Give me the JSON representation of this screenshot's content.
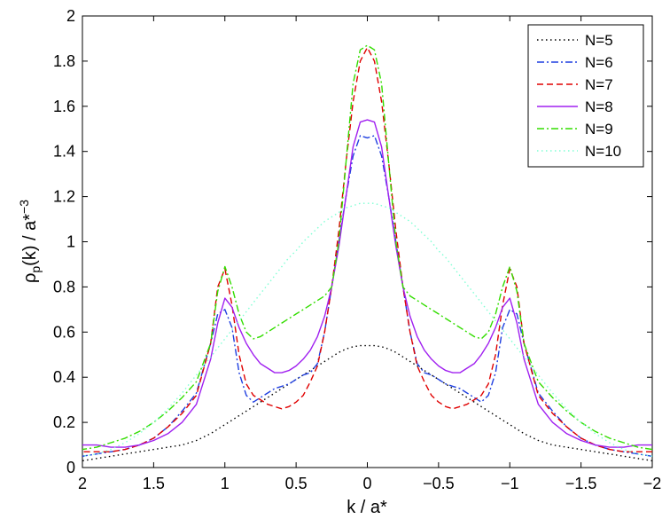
{
  "chart_data": {
    "type": "line",
    "xlabel": "k / a*",
    "ylabel": "ρ",
    "ylabel_sub": "p",
    "ylabel_rest": "(k) / a*",
    "ylabel_sup": "−3",
    "xlim": [
      2,
      -2
    ],
    "ylim": [
      0,
      2
    ],
    "xticks": [
      "2",
      "1.5",
      "1",
      "0.5",
      "0",
      "−0.5",
      "−1",
      "−1.5",
      "−2"
    ],
    "xtick_values": [
      2,
      1.5,
      1,
      0.5,
      0,
      -0.5,
      -1,
      -1.5,
      -2
    ],
    "yticks": [
      "0",
      "0.2",
      "0.4",
      "0.6",
      "0.8",
      "1",
      "1.2",
      "1.4",
      "1.6",
      "1.8",
      "2"
    ],
    "ytick_values": [
      0,
      0.2,
      0.4,
      0.6,
      0.8,
      1,
      1.2,
      1.4,
      1.6,
      1.8,
      2
    ],
    "grid": false,
    "legend_position": "top-right",
    "x": [
      -2,
      -1.9,
      -1.8,
      -1.7,
      -1.6,
      -1.5,
      -1.4,
      -1.3,
      -1.2,
      -1.1,
      -1.05,
      -1,
      -0.95,
      -0.9,
      -0.85,
      -0.8,
      -0.75,
      -0.7,
      -0.65,
      -0.6,
      -0.55,
      -0.5,
      -0.45,
      -0.4,
      -0.35,
      -0.3,
      -0.25,
      -0.2,
      -0.15,
      -0.1,
      -0.05,
      0,
      0.05,
      0.1,
      0.15,
      0.2,
      0.25,
      0.3,
      0.35,
      0.4,
      0.45,
      0.5,
      0.55,
      0.6,
      0.65,
      0.7,
      0.75,
      0.8,
      0.85,
      0.9,
      0.95,
      1,
      1.05,
      1.1,
      1.2,
      1.3,
      1.4,
      1.5,
      1.6,
      1.7,
      1.8,
      1.9,
      2
    ],
    "series": [
      {
        "name": "N=5",
        "color": "#000000",
        "dash": "1.5 3.5",
        "values": [
          0.03,
          0.04,
          0.05,
          0.06,
          0.07,
          0.08,
          0.09,
          0.1,
          0.12,
          0.15,
          0.17,
          0.19,
          0.21,
          0.23,
          0.25,
          0.27,
          0.29,
          0.31,
          0.33,
          0.35,
          0.37,
          0.39,
          0.41,
          0.43,
          0.45,
          0.47,
          0.49,
          0.51,
          0.525,
          0.535,
          0.54,
          0.54,
          0.54,
          0.535,
          0.525,
          0.51,
          0.49,
          0.47,
          0.45,
          0.43,
          0.41,
          0.39,
          0.37,
          0.35,
          0.33,
          0.31,
          0.29,
          0.27,
          0.25,
          0.23,
          0.21,
          0.19,
          0.17,
          0.15,
          0.12,
          0.1,
          0.09,
          0.08,
          0.07,
          0.06,
          0.05,
          0.04,
          0.03
        ]
      },
      {
        "name": "N=6",
        "color": "#1f3fe0",
        "dash": "8 3 2 3",
        "values": [
          0.05,
          0.06,
          0.07,
          0.08,
          0.1,
          0.13,
          0.18,
          0.25,
          0.33,
          0.55,
          0.68,
          0.7,
          0.62,
          0.42,
          0.32,
          0.29,
          0.31,
          0.33,
          0.35,
          0.36,
          0.37,
          0.39,
          0.41,
          0.42,
          0.46,
          0.6,
          0.8,
          1.0,
          1.2,
          1.38,
          1.47,
          1.46,
          1.47,
          1.38,
          1.2,
          1.0,
          0.8,
          0.6,
          0.46,
          0.42,
          0.41,
          0.39,
          0.37,
          0.36,
          0.35,
          0.33,
          0.31,
          0.29,
          0.32,
          0.42,
          0.62,
          0.7,
          0.68,
          0.55,
          0.33,
          0.25,
          0.18,
          0.13,
          0.1,
          0.08,
          0.07,
          0.06,
          0.05
        ]
      },
      {
        "name": "N=7",
        "color": "#e00000",
        "dash": "7 4",
        "values": [
          0.07,
          0.07,
          0.07,
          0.08,
          0.1,
          0.13,
          0.18,
          0.24,
          0.32,
          0.55,
          0.8,
          0.88,
          0.72,
          0.5,
          0.37,
          0.32,
          0.3,
          0.28,
          0.27,
          0.26,
          0.27,
          0.29,
          0.32,
          0.38,
          0.45,
          0.6,
          0.8,
          1.05,
          1.35,
          1.62,
          1.8,
          1.86,
          1.8,
          1.62,
          1.35,
          1.05,
          0.8,
          0.6,
          0.45,
          0.38,
          0.32,
          0.29,
          0.27,
          0.26,
          0.27,
          0.28,
          0.3,
          0.32,
          0.37,
          0.5,
          0.72,
          0.88,
          0.8,
          0.55,
          0.32,
          0.24,
          0.18,
          0.13,
          0.1,
          0.08,
          0.07,
          0.07,
          0.07
        ]
      },
      {
        "name": "N=8",
        "color": "#a020f0",
        "dash": "",
        "values": [
          0.1,
          0.1,
          0.09,
          0.09,
          0.1,
          0.12,
          0.15,
          0.2,
          0.28,
          0.48,
          0.64,
          0.75,
          0.71,
          0.62,
          0.55,
          0.5,
          0.46,
          0.44,
          0.42,
          0.42,
          0.43,
          0.45,
          0.48,
          0.52,
          0.58,
          0.67,
          0.8,
          0.98,
          1.2,
          1.42,
          1.53,
          1.54,
          1.53,
          1.42,
          1.2,
          0.98,
          0.8,
          0.67,
          0.58,
          0.52,
          0.48,
          0.45,
          0.43,
          0.42,
          0.42,
          0.44,
          0.46,
          0.5,
          0.55,
          0.62,
          0.71,
          0.75,
          0.64,
          0.48,
          0.28,
          0.2,
          0.15,
          0.12,
          0.1,
          0.09,
          0.09,
          0.1,
          0.1
        ]
      },
      {
        "name": "N=9",
        "color": "#33dd00",
        "dash": "8 3 2 3",
        "values": [
          0.08,
          0.09,
          0.11,
          0.13,
          0.16,
          0.2,
          0.25,
          0.31,
          0.38,
          0.55,
          0.78,
          0.89,
          0.8,
          0.68,
          0.6,
          0.57,
          0.58,
          0.6,
          0.62,
          0.64,
          0.66,
          0.68,
          0.7,
          0.72,
          0.74,
          0.76,
          0.8,
          1.0,
          1.35,
          1.7,
          1.85,
          1.87,
          1.85,
          1.7,
          1.35,
          1.0,
          0.8,
          0.76,
          0.74,
          0.72,
          0.7,
          0.68,
          0.66,
          0.64,
          0.62,
          0.6,
          0.58,
          0.57,
          0.6,
          0.68,
          0.8,
          0.89,
          0.78,
          0.55,
          0.38,
          0.31,
          0.25,
          0.2,
          0.16,
          0.13,
          0.11,
          0.09,
          0.08
        ]
      },
      {
        "name": "N=10",
        "color": "#7fffd4",
        "dash": "1.5 3.5",
        "values": [
          0.05,
          0.06,
          0.08,
          0.11,
          0.15,
          0.2,
          0.26,
          0.33,
          0.41,
          0.49,
          0.53,
          0.57,
          0.61,
          0.65,
          0.69,
          0.73,
          0.77,
          0.81,
          0.85,
          0.89,
          0.93,
          0.96,
          1.0,
          1.03,
          1.06,
          1.09,
          1.11,
          1.13,
          1.15,
          1.16,
          1.17,
          1.17,
          1.17,
          1.16,
          1.15,
          1.13,
          1.11,
          1.09,
          1.06,
          1.03,
          1.0,
          0.96,
          0.93,
          0.89,
          0.85,
          0.81,
          0.77,
          0.73,
          0.69,
          0.65,
          0.61,
          0.57,
          0.53,
          0.49,
          0.41,
          0.33,
          0.26,
          0.2,
          0.15,
          0.11,
          0.08,
          0.06,
          0.05
        ]
      }
    ]
  }
}
